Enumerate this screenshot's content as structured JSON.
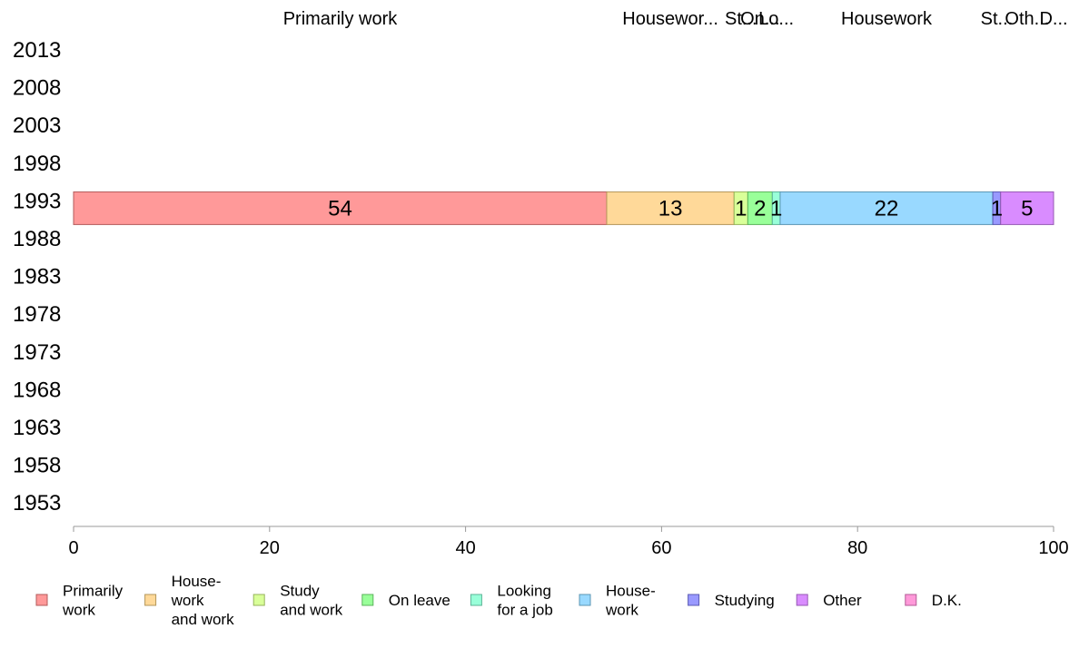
{
  "chart_data": {
    "type": "bar",
    "orientation": "horizontal-stacked",
    "categories": [
      "2013",
      "2008",
      "2003",
      "1998",
      "1993",
      "1988",
      "1983",
      "1978",
      "1973",
      "1968",
      "1963",
      "1958",
      "1953"
    ],
    "series": [
      {
        "name": "Primarily work",
        "legend_label": [
          "Primarily",
          "work"
        ],
        "top_label": "Primarily work",
        "color": "#ff9999",
        "stroke": "#b35b5b",
        "values": [
          null,
          null,
          null,
          null,
          54.4,
          null,
          null,
          null,
          null,
          null,
          null,
          null,
          null
        ]
      },
      {
        "name": "House-work and work",
        "legend_label": [
          "House-",
          "work",
          "and work"
        ],
        "top_label": "Housewor...",
        "color": "#ffd999",
        "stroke": "#b39659",
        "values": [
          null,
          null,
          null,
          null,
          13.0,
          null,
          null,
          null,
          null,
          null,
          null,
          null,
          null
        ]
      },
      {
        "name": "Study and work",
        "legend_label": [
          "Study",
          "and work"
        ],
        "top_label": "St...",
        "color": "#d9ff99",
        "stroke": "#96b35b",
        "values": [
          null,
          null,
          null,
          null,
          1.4,
          null,
          null,
          null,
          null,
          null,
          null,
          null,
          null
        ]
      },
      {
        "name": "On leave",
        "legend_label": [
          "On leave"
        ],
        "top_label": "On...",
        "color": "#99ff99",
        "stroke": "#5bb35b",
        "values": [
          null,
          null,
          null,
          null,
          2.5,
          null,
          null,
          null,
          null,
          null,
          null,
          null,
          null
        ]
      },
      {
        "name": "Looking for a job",
        "legend_label": [
          "Looking",
          "for a job"
        ],
        "top_label": "Lo...",
        "color": "#99ffd9",
        "stroke": "#5bb396",
        "values": [
          null,
          null,
          null,
          null,
          0.8,
          null,
          null,
          null,
          null,
          null,
          null,
          null,
          null
        ]
      },
      {
        "name": "House-work",
        "legend_label": [
          "House-",
          "work"
        ],
        "top_label": "Housework",
        "color": "#99d9ff",
        "stroke": "#5b96b3",
        "values": [
          null,
          null,
          null,
          null,
          21.7,
          null,
          null,
          null,
          null,
          null,
          null,
          null,
          null
        ]
      },
      {
        "name": "Studying",
        "legend_label": [
          "Studying"
        ],
        "top_label": "St...",
        "color": "#9999ff",
        "stroke": "#5b5bb3",
        "values": [
          null,
          null,
          null,
          null,
          0.8,
          null,
          null,
          null,
          null,
          null,
          null,
          null,
          null
        ]
      },
      {
        "name": "Other",
        "legend_label": [
          "Other"
        ],
        "top_label": "Oth...",
        "color": "#d98cff",
        "stroke": "#9659b3",
        "values": [
          null,
          null,
          null,
          null,
          5.4,
          null,
          null,
          null,
          null,
          null,
          null,
          null,
          null
        ]
      },
      {
        "name": "D.K.",
        "legend_label": [
          "D.K."
        ],
        "top_label": "D...",
        "color": "#ff99d9",
        "stroke": "#b35b96",
        "values": [
          null,
          null,
          null,
          null,
          0.0,
          null,
          null,
          null,
          null,
          null,
          null,
          null,
          null
        ]
      }
    ],
    "data_labels": [
      "54",
      "13",
      "1",
      "2",
      "1",
      "22",
      "1",
      "5",
      ""
    ],
    "top_labels_text": [
      "Primarily work",
      "Housewor...",
      "St...",
      "On...",
      "Lo...",
      "Housework",
      "St...",
      "Oth...",
      "D..."
    ],
    "xlim": [
      0,
      100
    ],
    "xticks": [
      "0",
      "20",
      "40",
      "60",
      "80",
      "100"
    ],
    "title": "",
    "xlabel": "",
    "ylabel": "",
    "grid": false,
    "legend_position": "bottom"
  }
}
